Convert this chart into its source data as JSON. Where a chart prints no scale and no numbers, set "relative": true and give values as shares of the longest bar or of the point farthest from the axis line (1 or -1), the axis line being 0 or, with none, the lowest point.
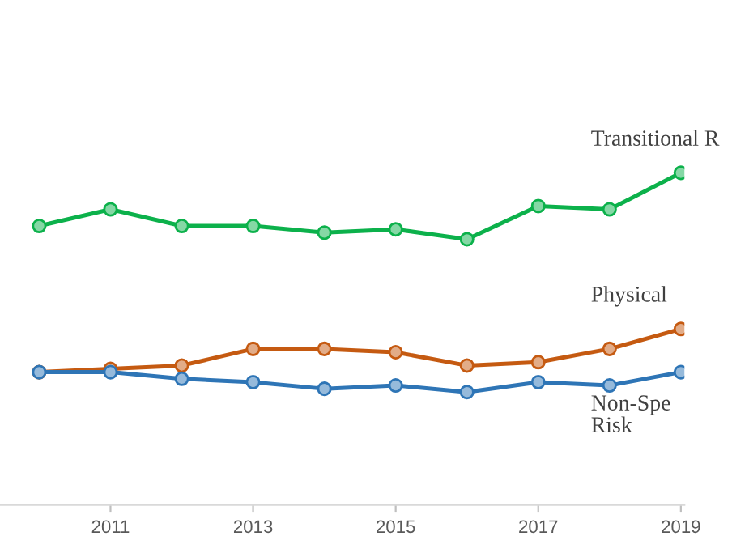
{
  "chart_data": {
    "type": "line",
    "relative": true,
    "marker": "circle",
    "line_style": "solid",
    "grid": false,
    "legend": false,
    "x": [
      2010,
      2011,
      2012,
      2013,
      2014,
      2015,
      2016,
      2017,
      2018,
      2019
    ],
    "xlim": [
      2009.45,
      2019.05
    ],
    "xticks": [
      2011,
      2013,
      2015,
      2017,
      2019
    ],
    "series": [
      {
        "name": "Transitional R",
        "color": "#0cb14b",
        "values": [
          0.84,
          0.89,
          0.84,
          0.84,
          0.82,
          0.83,
          0.8,
          0.9,
          0.89,
          1.0
        ]
      },
      {
        "name": "Physical",
        "color": "#c55a11",
        "values": [
          0.4,
          0.41,
          0.42,
          0.47,
          0.47,
          0.46,
          0.42,
          0.43,
          0.47,
          0.53
        ]
      },
      {
        "name": "Non-Spe\nRisk",
        "color": "#2e75b6",
        "values": [
          0.4,
          0.4,
          0.38,
          0.37,
          0.35,
          0.36,
          0.34,
          0.37,
          0.36,
          0.4
        ]
      }
    ]
  }
}
